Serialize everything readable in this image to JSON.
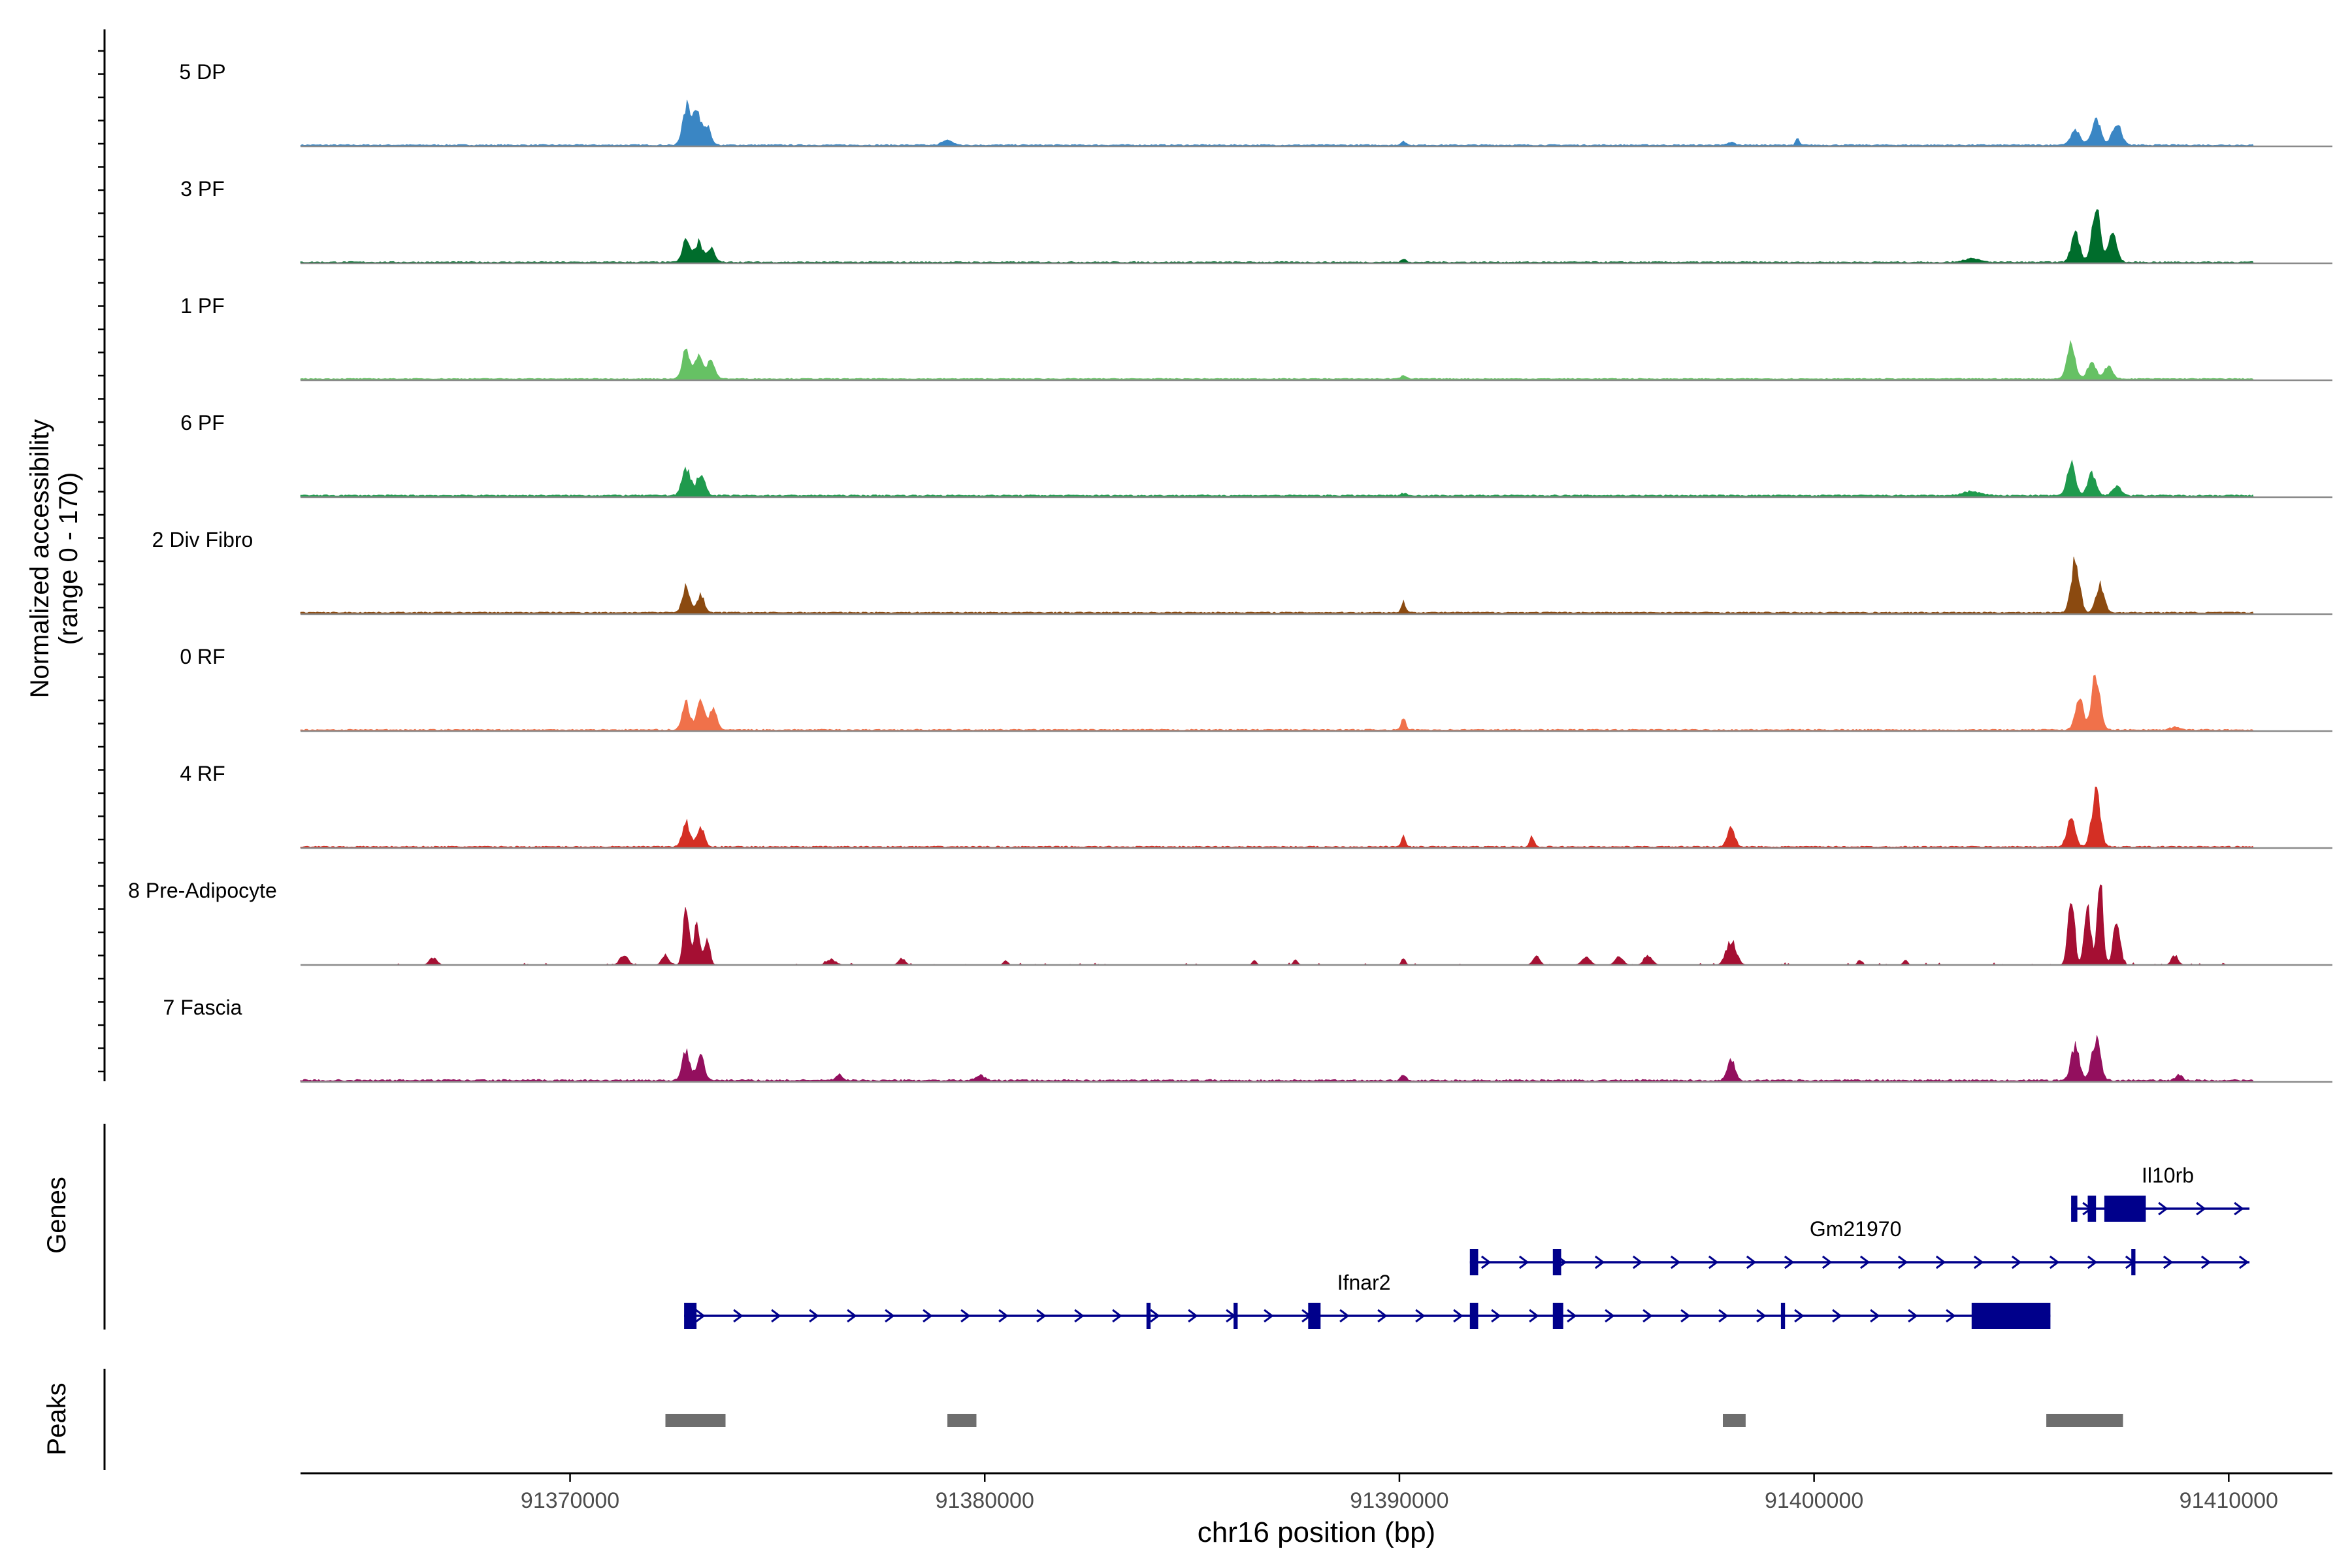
{
  "chart_data": {
    "type": "area",
    "title": "",
    "ylabel": "Normalized accessibility",
    "ylabel_range": "(range 0 - 170)",
    "y_range": [
      0,
      170
    ],
    "xlabel": "chr16 position (bp)",
    "xlim": [
      91363500,
      91412500
    ],
    "x_ticks": [
      91370000,
      91380000,
      91390000,
      91400000,
      91410000
    ],
    "x_tick_labels": [
      "91370000",
      "91380000",
      "91390000",
      "91400000",
      "91410000"
    ],
    "track_labels": {
      "genes": "Genes",
      "peaks": "Peaks"
    },
    "series": [
      {
        "name": "5 DP",
        "color": "#3a86c4",
        "baseline": 1.5,
        "noise": 2.0,
        "peaks": [
          [
            91372800,
            80,
            90
          ],
          [
            91373050,
            70,
            90
          ],
          [
            91373300,
            38,
            90
          ],
          [
            91379100,
            10,
            120
          ],
          [
            91390100,
            7,
            60
          ],
          [
            91398000,
            6,
            80
          ],
          [
            91399600,
            14,
            40
          ],
          [
            91406300,
            30,
            110
          ],
          [
            91406800,
            52,
            110
          ],
          [
            91407300,
            45,
            110
          ]
        ]
      },
      {
        "name": "3 PF",
        "color": "#006d2c",
        "baseline": 1.2,
        "noise": 2.0,
        "peaks": [
          [
            91372800,
            45,
            90
          ],
          [
            91373100,
            40,
            90
          ],
          [
            91373400,
            30,
            90
          ],
          [
            91390100,
            6,
            60
          ],
          [
            91403800,
            7,
            200
          ],
          [
            91406300,
            60,
            100
          ],
          [
            91406800,
            115,
            100
          ],
          [
            91407200,
            60,
            100
          ]
        ]
      },
      {
        "name": "1 PF",
        "color": "#66c164",
        "baseline": 2.0,
        "noise": 1.5,
        "peaks": [
          [
            91372800,
            60,
            90
          ],
          [
            91373100,
            50,
            90
          ],
          [
            91373400,
            40,
            90
          ],
          [
            91390100,
            8,
            60
          ],
          [
            91406200,
            68,
            100
          ],
          [
            91406700,
            35,
            100
          ],
          [
            91407100,
            25,
            100
          ]
        ]
      },
      {
        "name": "6 PF",
        "color": "#1f9a4d",
        "baseline": 2.0,
        "noise": 2.5,
        "peaks": [
          [
            91372800,
            55,
            100
          ],
          [
            91373150,
            45,
            100
          ],
          [
            91390100,
            5,
            60
          ],
          [
            91403800,
            8,
            200
          ],
          [
            91406200,
            65,
            100
          ],
          [
            91406700,
            45,
            100
          ],
          [
            91407300,
            20,
            100
          ]
        ]
      },
      {
        "name": "2 Div Fibro",
        "color": "#8b4a10",
        "baseline": 2.0,
        "noise": 2.0,
        "peaks": [
          [
            91372800,
            55,
            90
          ],
          [
            91373150,
            35,
            90
          ],
          [
            91390100,
            22,
            50
          ],
          [
            91406300,
            105,
            100
          ],
          [
            91406900,
            55,
            100
          ]
        ]
      },
      {
        "name": "0 RF",
        "color": "#f0714a",
        "baseline": 1.5,
        "noise": 2.0,
        "peaks": [
          [
            91372800,
            55,
            90
          ],
          [
            91373150,
            60,
            90
          ],
          [
            91373450,
            40,
            90
          ],
          [
            91390100,
            25,
            50
          ],
          [
            91406400,
            60,
            100
          ],
          [
            91406800,
            115,
            100
          ],
          [
            91408700,
            6,
            120
          ]
        ]
      },
      {
        "name": "4 RF",
        "color": "#d42f24",
        "baseline": 1.5,
        "noise": 2.0,
        "peaks": [
          [
            91372800,
            50,
            90
          ],
          [
            91373150,
            40,
            90
          ],
          [
            91390100,
            20,
            50
          ],
          [
            91393200,
            22,
            50
          ],
          [
            91398000,
            38,
            90
          ],
          [
            91406200,
            55,
            100
          ],
          [
            91406800,
            115,
            100
          ]
        ]
      },
      {
        "name": "8 Pre-Adipocyte",
        "color": "#a50f33",
        "baseline": 0,
        "noise": 4.0,
        "peaks": [
          [
            91366700,
            15,
            90
          ],
          [
            91371300,
            20,
            100
          ],
          [
            91372300,
            18,
            90
          ],
          [
            91372800,
            120,
            70
          ],
          [
            91373050,
            80,
            70
          ],
          [
            91373300,
            50,
            70
          ],
          [
            91376300,
            10,
            120
          ],
          [
            91378000,
            13,
            80
          ],
          [
            91380500,
            10,
            50
          ],
          [
            91386500,
            10,
            50
          ],
          [
            91387500,
            12,
            50
          ],
          [
            91390100,
            14,
            50
          ],
          [
            91393300,
            20,
            80
          ],
          [
            91394500,
            18,
            100
          ],
          [
            91395300,
            16,
            100
          ],
          [
            91396000,
            20,
            100
          ],
          [
            91398000,
            50,
            120
          ],
          [
            91401100,
            10,
            50
          ],
          [
            91402200,
            12,
            50
          ],
          [
            91406200,
            140,
            80
          ],
          [
            91406600,
            110,
            80
          ],
          [
            91406900,
            170,
            70
          ],
          [
            91407300,
            95,
            80
          ],
          [
            91408700,
            20,
            80
          ],
          [
            91410700,
            10,
            40
          ]
        ]
      },
      {
        "name": "7 Fascia",
        "color": "#930f5e",
        "baseline": 1.5,
        "noise": 3.0,
        "peaks": [
          [
            91372800,
            60,
            90
          ],
          [
            91373150,
            50,
            90
          ],
          [
            91376500,
            12,
            80
          ],
          [
            91379900,
            10,
            100
          ],
          [
            91390100,
            10,
            60
          ],
          [
            91398000,
            45,
            90
          ],
          [
            91406300,
            70,
            100
          ],
          [
            91406800,
            85,
            100
          ],
          [
            91408800,
            12,
            80
          ]
        ]
      }
    ],
    "genes": [
      {
        "name": "Il10rb",
        "row": 0,
        "start": 91406200,
        "end": 91410500,
        "exons": [
          [
            91406200,
            91406350
          ],
          [
            91406600,
            91406800
          ],
          [
            91407000,
            91408000
          ]
        ]
      },
      {
        "name": "Gm21970",
        "row": 1,
        "start": 91391700,
        "end": 91410500,
        "exons": [
          [
            91391700,
            91391900
          ],
          [
            91393700,
            91393900
          ],
          [
            91407650,
            91407750
          ]
        ]
      },
      {
        "name": "Ifnar2",
        "row": 2,
        "start": 91372750,
        "end": 91405700,
        "exons": [
          [
            91372750,
            91373050
          ],
          [
            91383900,
            91384000
          ],
          [
            91386000,
            91386100
          ],
          [
            91387800,
            91388100
          ],
          [
            91391700,
            91391900
          ],
          [
            91393700,
            91393950
          ],
          [
            91399200,
            91399300
          ],
          [
            91403800,
            91405700
          ]
        ]
      }
    ],
    "peaks": [
      [
        91372300,
        91373750
      ],
      [
        91379100,
        91379800
      ],
      [
        91397800,
        91398350
      ],
      [
        91405600,
        91407450
      ]
    ]
  }
}
